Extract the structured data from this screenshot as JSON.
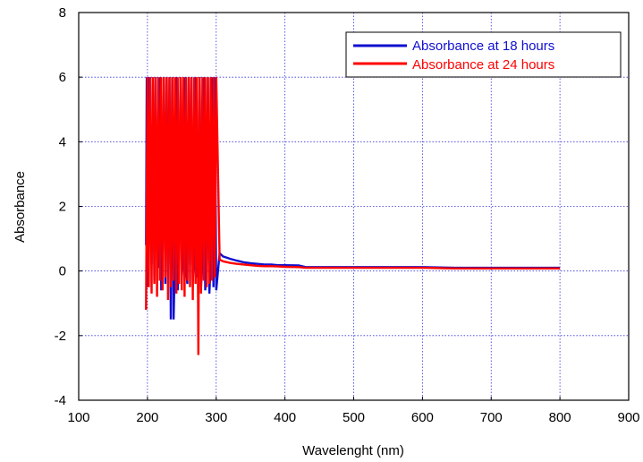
{
  "chart_data": {
    "type": "line",
    "xlabel": "Wavelenght (nm)",
    "ylabel": "Absorbance",
    "xlim": [
      100,
      900
    ],
    "ylim": [
      -4,
      8
    ],
    "x_ticks": [
      100,
      200,
      300,
      400,
      500,
      600,
      700,
      800,
      900
    ],
    "y_ticks": [
      -4,
      -2,
      0,
      2,
      4,
      6,
      8
    ],
    "grid": true,
    "legend_position": "top-right",
    "series": [
      {
        "name": "Absorbance at 18 hours",
        "color": "#1010d0",
        "x": [
          198,
          199,
          200,
          203,
          206,
          208,
          210,
          212,
          214,
          216,
          218,
          220,
          222,
          224,
          226,
          228,
          230,
          232,
          234,
          236,
          238,
          240,
          242,
          244,
          246,
          248,
          250,
          252,
          254,
          256,
          258,
          260,
          262,
          264,
          266,
          268,
          270,
          272,
          274,
          276,
          278,
          280,
          282,
          284,
          286,
          288,
          290,
          292,
          294,
          296,
          298,
          300,
          305,
          310,
          320,
          330,
          340,
          350,
          360,
          370,
          380,
          390,
          400,
          420,
          430,
          450,
          500,
          550,
          600,
          650,
          700,
          750,
          800
        ],
        "y": [
          0.8,
          6.0,
          -0.5,
          6.0,
          0.2,
          6.0,
          -0.3,
          6.0,
          0.4,
          0.1,
          6.0,
          -0.6,
          0.3,
          6.0,
          -0.4,
          6.0,
          0.2,
          6.0,
          -1.5,
          6.0,
          -1.5,
          0.3,
          6.0,
          -0.6,
          0.4,
          6.0,
          -0.2,
          0.6,
          6.0,
          0.1,
          -0.4,
          6.0,
          0.2,
          6.0,
          -0.3,
          0.5,
          6.0,
          -0.2,
          0.3,
          6.0,
          -0.5,
          0.4,
          6.0,
          -0.6,
          0.3,
          6.0,
          -0.7,
          0.2,
          6.0,
          -0.5,
          6.0,
          -0.6,
          0.55,
          0.45,
          0.38,
          0.32,
          0.27,
          0.24,
          0.22,
          0.2,
          0.2,
          0.18,
          0.18,
          0.17,
          0.12,
          0.12,
          0.12,
          0.12,
          0.12,
          0.1,
          0.1,
          0.1,
          0.1
        ]
      },
      {
        "name": "Absorbance at 24 hours",
        "color": "#ff0000",
        "x": [
          198,
          200,
          202,
          204,
          206,
          208,
          210,
          212,
          214,
          216,
          218,
          220,
          222,
          224,
          226,
          228,
          230,
          232,
          234,
          236,
          238,
          240,
          242,
          244,
          246,
          248,
          250,
          252,
          254,
          256,
          258,
          260,
          262,
          264,
          266,
          268,
          270,
          272,
          274,
          276,
          278,
          280,
          282,
          284,
          286,
          288,
          290,
          292,
          294,
          296,
          298,
          300,
          305,
          310,
          320,
          330,
          340,
          350,
          360,
          370,
          380,
          390,
          400,
          420,
          430,
          450,
          500,
          550,
          600,
          650,
          700,
          750,
          800
        ],
        "y": [
          -1.2,
          6.0,
          -0.5,
          6.0,
          -0.7,
          6.0,
          -0.4,
          6.0,
          -0.8,
          6.0,
          -0.3,
          6.0,
          -0.6,
          6.0,
          -0.2,
          6.0,
          -0.9,
          6.0,
          -0.5,
          6.0,
          -0.3,
          6.0,
          -0.7,
          6.0,
          -0.4,
          6.0,
          -0.6,
          6.0,
          -0.8,
          6.0,
          -0.3,
          6.0,
          -0.5,
          6.0,
          -0.9,
          6.0,
          -0.4,
          6.0,
          -2.6,
          6.0,
          -0.7,
          6.0,
          -0.3,
          6.0,
          -0.5,
          6.0,
          -0.4,
          6.0,
          -0.3,
          6.0,
          -0.2,
          6.0,
          0.35,
          0.3,
          0.25,
          0.22,
          0.2,
          0.18,
          0.16,
          0.15,
          0.15,
          0.14,
          0.13,
          0.12,
          0.1,
          0.1,
          0.1,
          0.1,
          0.1,
          0.08,
          0.08,
          0.08,
          0.08
        ]
      }
    ]
  }
}
